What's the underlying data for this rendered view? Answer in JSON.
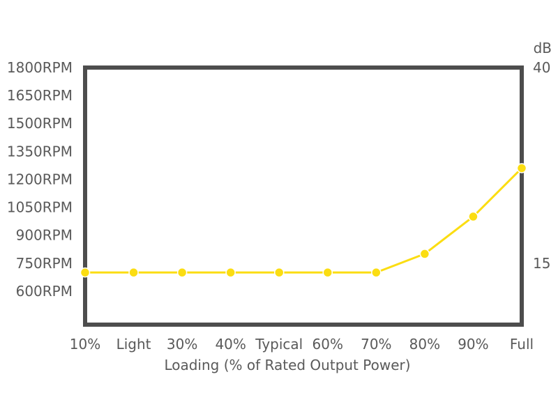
{
  "chart_data": {
    "type": "line",
    "title": "",
    "xlabel": "Loading (% of Rated Output Power)",
    "ylabel": "",
    "y2label": "dB",
    "categories": [
      "10%",
      "Light",
      "30%",
      "40%",
      "Typical",
      "60%",
      "70%",
      "80%",
      "90%",
      "Full"
    ],
    "series": [
      {
        "values": [
          700,
          700,
          700,
          700,
          700,
          700,
          700,
          800,
          1000,
          1260
        ]
      }
    ],
    "y_ticks": [
      "1800RPM",
      "1650RPM",
      "1500RPM",
      "1350RPM",
      "1200RPM",
      "1050RPM",
      "900RPM",
      "750RPM",
      "600RPM"
    ],
    "y_tick_values": [
      1800,
      1650,
      1500,
      1350,
      1200,
      1050,
      900,
      750,
      600
    ],
    "y2_ticks": [
      "40",
      "15"
    ],
    "y2_tick_values": [
      1800,
      750
    ],
    "ylim": [
      420,
      1800
    ],
    "grid": false,
    "colors": {
      "line": "#FBDD12",
      "frame": "#4D4D4D",
      "text": "#595959",
      "marker_edge": "#FFFFFF"
    }
  }
}
